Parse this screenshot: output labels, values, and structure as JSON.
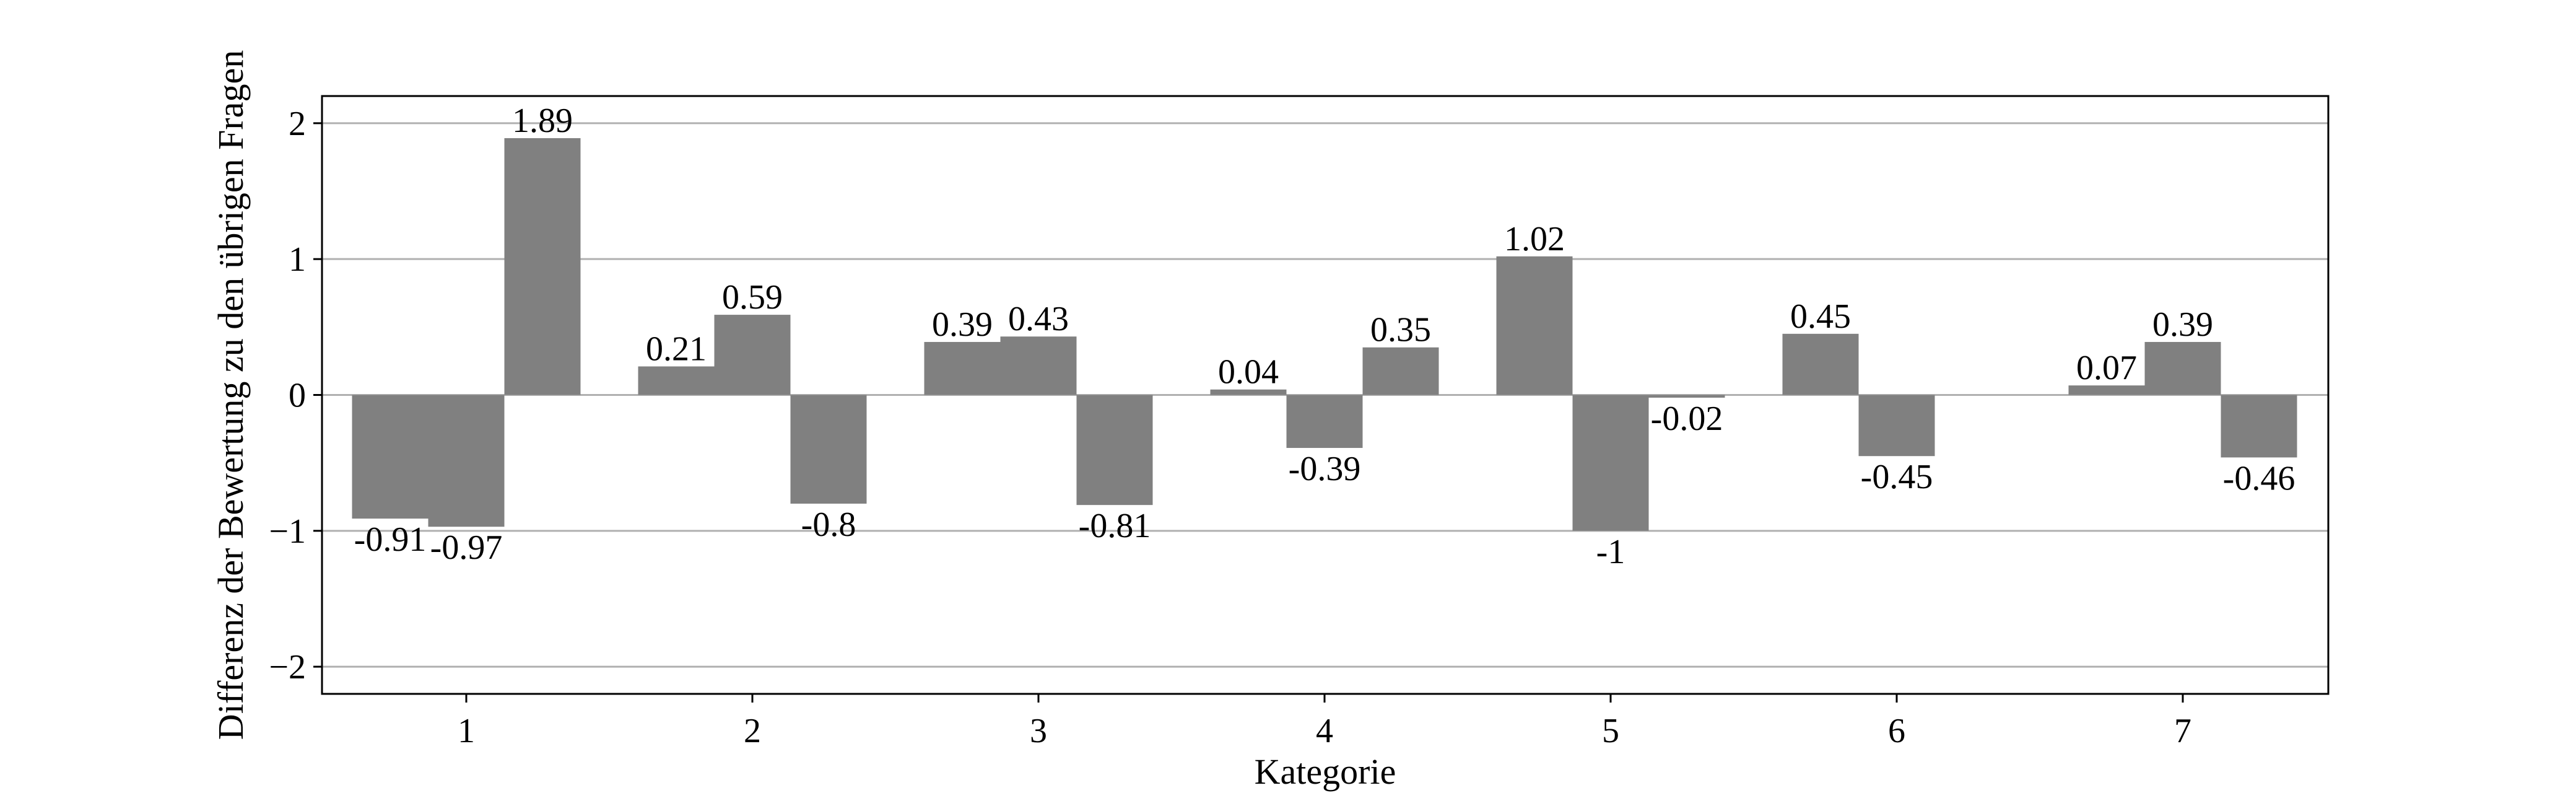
{
  "chart_data": {
    "type": "bar",
    "title": "",
    "xlabel": "Kategorie",
    "ylabel": "Differenz der Bewertung zu den übrigen Fragen",
    "ylim": [
      -2.2,
      2.2
    ],
    "yticks": [
      2,
      1,
      0,
      -1,
      -2
    ],
    "ytick_labels": [
      "2",
      "1",
      "0",
      "−1",
      "−2"
    ],
    "categories": [
      "1",
      "2",
      "3",
      "4",
      "5",
      "6",
      "7"
    ],
    "bar_color": "#808080",
    "grid": "horizontal",
    "legend": "none",
    "series": [
      {
        "values": [
          -0.91,
          0.21,
          0.39,
          0.04,
          1.02,
          0.45,
          0.07
        ],
        "labels": [
          "-0.91",
          "0.21",
          "0.39",
          "0.04",
          "1.02",
          "0.45",
          "0.07"
        ]
      },
      {
        "values": [
          -0.97,
          0.59,
          0.43,
          -0.39,
          -1,
          -0.45,
          0.39
        ],
        "labels": [
          "-0.97",
          "0.59",
          "0.43",
          "-0.39",
          "-1",
          "-0.45",
          "0.39"
        ]
      },
      {
        "values": [
          1.89,
          -0.8,
          -0.81,
          0.35,
          -0.02,
          null,
          -0.46
        ],
        "labels": [
          "1.89",
          "-0.8",
          "-0.81",
          "0.35",
          "-0.02",
          "",
          "-0.46"
        ]
      }
    ]
  }
}
